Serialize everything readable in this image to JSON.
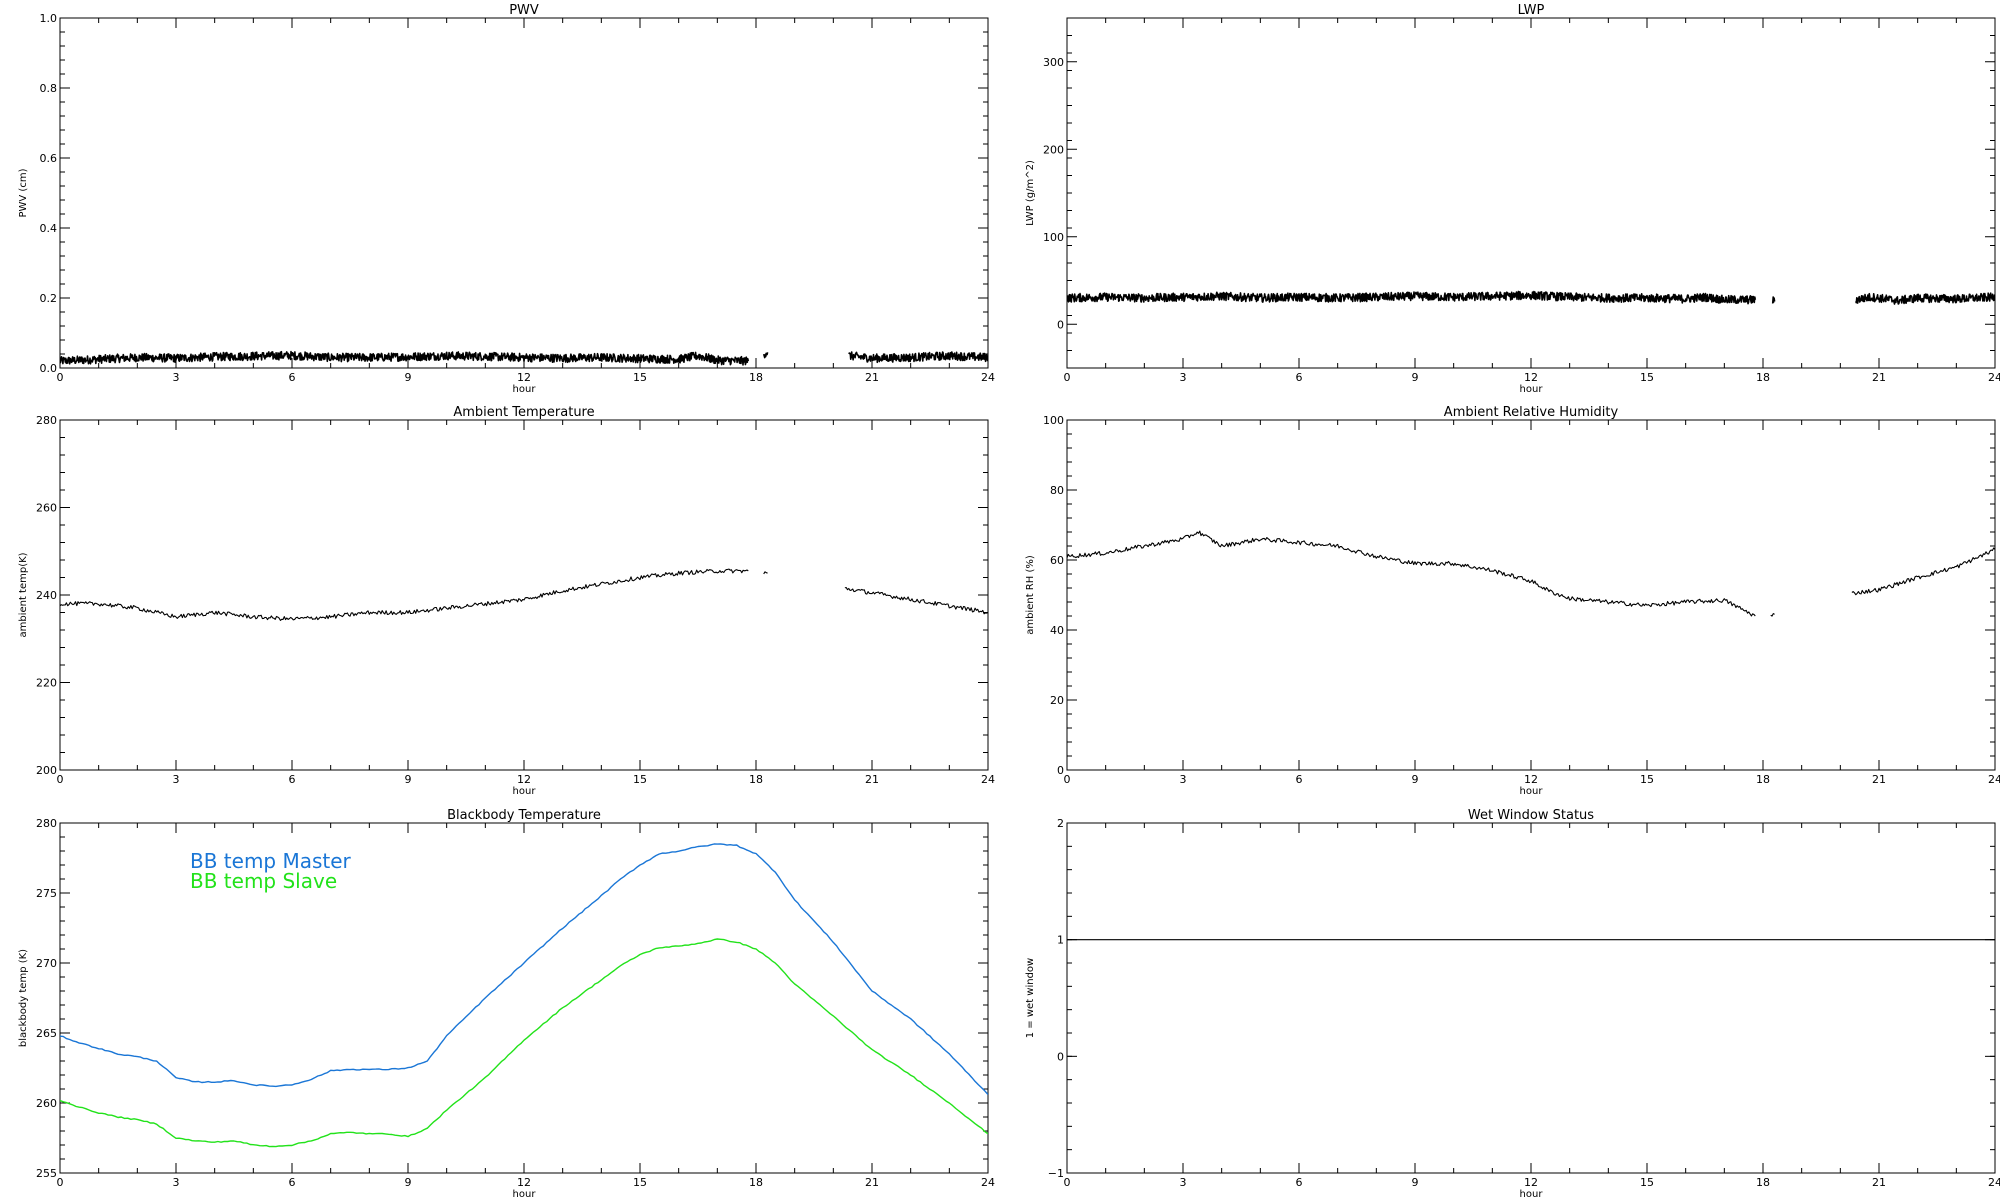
{
  "chart_data": [
    {
      "id": "pwv",
      "type": "line",
      "title": "PWV",
      "xlabel": "hour",
      "ylabel": "PWV (cm)",
      "xlim": [
        0,
        24
      ],
      "ylim": [
        0,
        1.0
      ],
      "xticks": [
        "0",
        "3",
        "6",
        "9",
        "12",
        "15",
        "18",
        "21",
        "24"
      ],
      "yticks": [
        "0.0",
        "0.2",
        "0.4",
        "0.6",
        "0.8",
        "1.0"
      ],
      "series": [
        {
          "color": "#000000",
          "style": "noisy",
          "x": [
            0,
            1,
            2,
            3,
            4,
            5,
            6,
            7,
            8,
            9,
            10,
            11,
            12,
            13,
            14,
            15,
            16,
            16.5,
            17,
            17.8,
            null,
            18.2,
            18.3,
            null,
            20.4,
            21,
            22,
            23,
            24
          ],
          "y": [
            0.02,
            0.025,
            0.03,
            0.028,
            0.032,
            0.034,
            0.036,
            0.03,
            0.03,
            0.032,
            0.035,
            0.033,
            0.03,
            0.028,
            0.03,
            0.027,
            0.025,
            0.035,
            0.022,
            0.02,
            null,
            0.04,
            0.045,
            null,
            0.035,
            0.028,
            0.03,
            0.035,
            0.03
          ]
        }
      ]
    },
    {
      "id": "lwp",
      "type": "line",
      "title": "LWP",
      "xlabel": "hour",
      "ylabel": "LWP (g/m^2)",
      "xlim": [
        0,
        24
      ],
      "ylim": [
        -50,
        350
      ],
      "xticks": [
        "0",
        "3",
        "6",
        "9",
        "12",
        "15",
        "18",
        "21",
        "24"
      ],
      "yticks": [
        "0",
        "100",
        "200",
        "300"
      ],
      "series": [
        {
          "color": "#000000",
          "style": "noisy",
          "x": [
            0,
            1,
            2,
            3,
            4,
            5,
            6,
            7,
            8,
            9,
            10,
            11,
            12,
            13,
            14,
            15,
            16,
            16.5,
            17,
            17.8,
            null,
            18.25,
            18.3,
            null,
            20.4,
            20.8,
            21.5,
            22,
            23,
            24
          ],
          "y": [
            30,
            31,
            30,
            31,
            32,
            30,
            31,
            30,
            31,
            32,
            31,
            32,
            33,
            31,
            30,
            30,
            29,
            31,
            28,
            28,
            null,
            27,
            26,
            null,
            28,
            31,
            27,
            30,
            29,
            31
          ]
        }
      ]
    },
    {
      "id": "ambient-temperature",
      "type": "line",
      "title": "Ambient Temperature",
      "xlabel": "hour",
      "ylabel": "ambient temp(K)",
      "xlim": [
        0,
        24
      ],
      "ylim": [
        200,
        280
      ],
      "xticks": [
        "0",
        "3",
        "6",
        "9",
        "12",
        "15",
        "18",
        "21",
        "24"
      ],
      "yticks": [
        "200",
        "220",
        "240",
        "260",
        "280"
      ],
      "series": [
        {
          "color": "#000000",
          "style": "wiggly",
          "x": [
            0,
            1,
            2,
            3,
            4,
            5,
            6,
            7,
            8,
            9,
            10,
            11,
            12,
            13,
            14,
            15,
            16,
            17,
            17.8,
            null,
            18.2,
            18.3,
            null,
            20.3,
            21,
            22,
            23,
            24
          ],
          "y": [
            238,
            238,
            237,
            235,
            236,
            235,
            234.5,
            235,
            236,
            236,
            237,
            238,
            239,
            241,
            242.5,
            244,
            245,
            245.5,
            245.5,
            null,
            245,
            245,
            null,
            241.5,
            240.5,
            239,
            237.5,
            236
          ]
        }
      ]
    },
    {
      "id": "ambient-relative-humidity",
      "type": "line",
      "title": "Ambient Relative Humidity",
      "xlabel": "hour",
      "ylabel": "ambient RH (%)",
      "xlim": [
        0,
        24
      ],
      "ylim": [
        0,
        100
      ],
      "xticks": [
        "0",
        "3",
        "6",
        "9",
        "12",
        "15",
        "18",
        "21",
        "24"
      ],
      "yticks": [
        "0",
        "20",
        "40",
        "60",
        "80",
        "100"
      ],
      "series": [
        {
          "color": "#000000",
          "style": "wiggly",
          "x": [
            0,
            1,
            2,
            3,
            3.4,
            4,
            5,
            6,
            7,
            8,
            9,
            10,
            11,
            12,
            12.5,
            13,
            14,
            15,
            16,
            17,
            17.8,
            null,
            18.2,
            18.3,
            null,
            20.3,
            21,
            22,
            23,
            24
          ],
          "y": [
            61,
            62,
            64,
            66,
            68,
            64,
            66,
            65,
            64,
            61,
            59,
            59,
            57,
            54,
            51,
            49,
            48,
            47,
            48,
            48.5,
            44,
            null,
            44,
            44.5,
            null,
            50.5,
            51.5,
            55,
            58,
            63
          ]
        }
      ]
    },
    {
      "id": "blackbody-temperature",
      "type": "line",
      "title": "Blackbody Temperature",
      "xlabel": "hour",
      "ylabel": "blackbody temp (K)",
      "xlim": [
        0,
        24
      ],
      "ylim": [
        255,
        280
      ],
      "xticks": [
        "0",
        "3",
        "6",
        "9",
        "12",
        "15",
        "18",
        "21",
        "24"
      ],
      "yticks": [
        "255",
        "260",
        "265",
        "270",
        "275",
        "280"
      ],
      "legend": {
        "placement": "top-left",
        "entries": [
          {
            "label": "BB temp Master",
            "color": "#1a76d6"
          },
          {
            "label": "BB temp Slave",
            "color": "#22e21a"
          }
        ]
      },
      "series": [
        {
          "name": "BB temp Master",
          "color": "#1a76d6",
          "style": "smooth",
          "x": [
            0,
            0.5,
            1,
            1.5,
            2,
            2.5,
            3,
            3.5,
            4,
            4.5,
            5,
            5.5,
            6,
            6.5,
            7,
            7.5,
            8,
            8.5,
            9,
            9.5,
            10,
            11,
            12,
            13,
            14,
            14.5,
            15,
            15.5,
            16,
            16.5,
            17,
            17.5,
            18,
            18.5,
            19,
            20,
            21,
            22,
            23,
            24
          ],
          "y": [
            264.8,
            264.3,
            263.9,
            263.5,
            263.3,
            263,
            261.8,
            261.5,
            261.5,
            261.6,
            261.3,
            261.2,
            261.3,
            261.7,
            262.3,
            262.4,
            262.4,
            262.4,
            262.5,
            263,
            264.8,
            267.5,
            270,
            272.5,
            274.8,
            276,
            277,
            277.8,
            278,
            278.3,
            278.5,
            278.4,
            277.8,
            276.5,
            274.5,
            271.5,
            268,
            266,
            263.5,
            260.6
          ]
        },
        {
          "name": "BB temp Slave",
          "color": "#22e21a",
          "style": "smooth",
          "x": [
            0,
            0.5,
            1,
            1.5,
            2,
            2.5,
            3,
            3.5,
            4,
            4.5,
            5,
            5.5,
            6,
            6.5,
            7,
            7.5,
            8,
            8.5,
            9,
            9.5,
            10,
            11,
            12,
            13,
            14,
            14.5,
            15,
            15.5,
            16,
            16.5,
            17,
            17.5,
            18,
            18.5,
            19,
            20,
            21,
            22,
            23,
            24
          ],
          "y": [
            260.2,
            259.7,
            259.3,
            259,
            258.8,
            258.5,
            257.5,
            257.3,
            257.2,
            257.3,
            257,
            256.9,
            257,
            257.3,
            257.8,
            257.9,
            257.8,
            257.8,
            257.6,
            258.2,
            259.5,
            261.8,
            264.5,
            266.8,
            268.8,
            269.8,
            270.6,
            271.1,
            271.2,
            271.4,
            271.7,
            271.5,
            271,
            270,
            268.5,
            266.2,
            263.8,
            262,
            260,
            257.8
          ]
        }
      ]
    },
    {
      "id": "wet-window-status",
      "type": "line",
      "title": "Wet Window Status",
      "xlabel": "hour",
      "ylabel": "1 = wet window",
      "xlim": [
        0,
        24
      ],
      "ylim": [
        -1,
        2
      ],
      "xticks": [
        "0",
        "3",
        "6",
        "9",
        "12",
        "15",
        "18",
        "21",
        "24"
      ],
      "yticks": [
        "−1",
        "0",
        "1",
        "2"
      ],
      "series": [
        {
          "color": "#000000",
          "style": "flat",
          "x": [
            0,
            24
          ],
          "y": [
            1,
            1
          ]
        }
      ]
    }
  ]
}
